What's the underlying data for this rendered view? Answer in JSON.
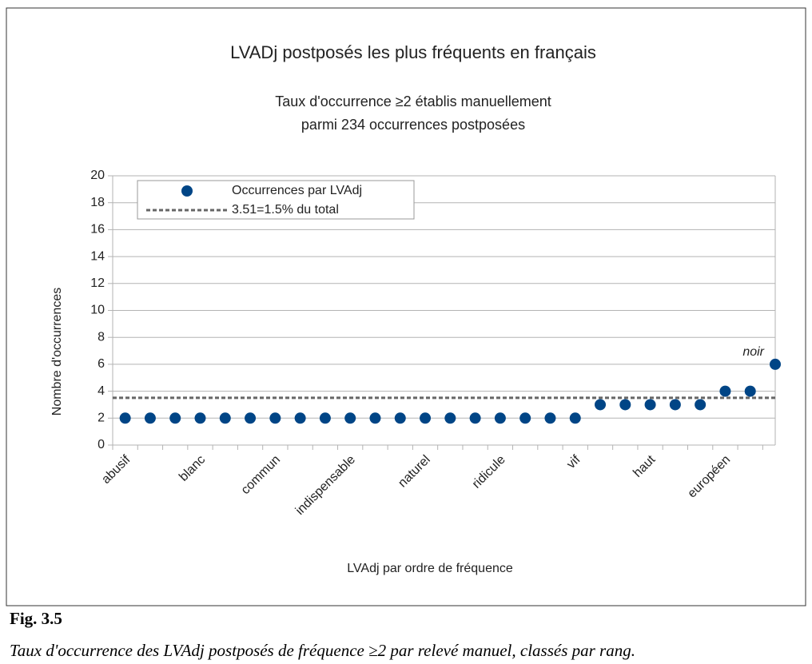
{
  "chart_data": {
    "type": "scatter",
    "title": "LVADj postposés les plus fréquents en français",
    "subtitle": [
      "Taux d'occurrence ≥2 établis manuellement",
      "parmi 234 occurrences postposées"
    ],
    "x_label": "LVAdj par ordre de fréquence",
    "y_label": "Nombre d'occurrences",
    "categories": [
      "abusif",
      null,
      null,
      "blanc",
      null,
      null,
      "commun",
      null,
      null,
      "indispensable",
      null,
      null,
      "naturel",
      null,
      null,
      "ridicule",
      null,
      null,
      "vif",
      null,
      null,
      "haut",
      null,
      null,
      "européen",
      null,
      null
    ],
    "series": [
      {
        "name": "Occurrences par LVAdj",
        "color": "#004586",
        "values": [
          2,
          2,
          2,
          2,
          2,
          2,
          2,
          2,
          2,
          2,
          2,
          2,
          2,
          2,
          2,
          2,
          2,
          2,
          2,
          3,
          3,
          3,
          3,
          3,
          4,
          4,
          6
        ]
      }
    ],
    "reference_line": {
      "name": "3.51=1.5% du total",
      "value": 3.51,
      "color": "#666666"
    },
    "annotation": "noir",
    "ylim": [
      0,
      20
    ],
    "yticks": [
      0,
      2,
      4,
      6,
      8,
      10,
      12,
      14,
      16,
      18,
      20
    ],
    "grid": true,
    "legend": "upper left"
  },
  "figure": {
    "label": "Fig. 3.5",
    "caption": "Taux d'occurrence des LVAdj postposés de fréquence ≥2 par relevé manuel, classés par rang."
  }
}
